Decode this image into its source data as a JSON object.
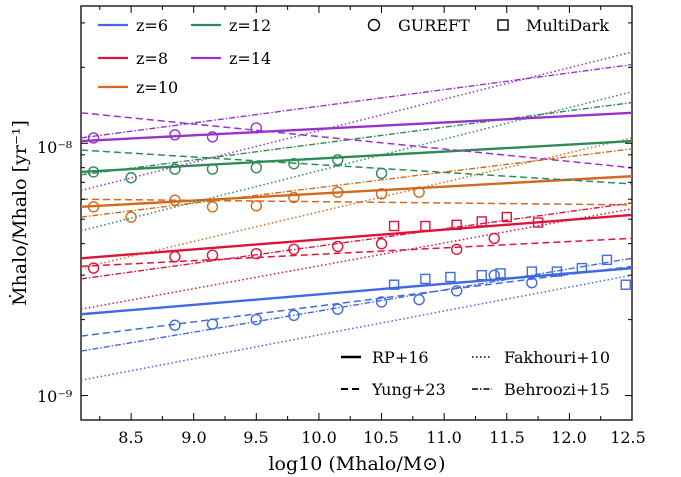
{
  "chart_data": {
    "type": "line",
    "xlabel": "log10 (Mhalo/M⊙)",
    "ylabel": "Ṁhalo/Mhalo [yr⁻¹]",
    "xlim": [
      8.1,
      12.5
    ],
    "ylim": [
      8e-10,
      3.5e-08
    ],
    "yscale": "log",
    "grid": false,
    "x_ticks": [
      "8.5",
      "9.0",
      "9.5",
      "10.0",
      "10.5",
      "11.0",
      "11.5",
      "12.0",
      "12.5"
    ],
    "y_ticks": [
      "10⁻⁹",
      "10⁻⁸"
    ],
    "redshift_legend": {
      "placement": "top-left",
      "entries": [
        {
          "label": "z=6",
          "color": "#4169e1"
        },
        {
          "label": "z=8",
          "color": "#dc143c"
        },
        {
          "label": "z=10",
          "color": "#d2691e"
        },
        {
          "label": "z=12",
          "color": "#2e8b57"
        },
        {
          "label": "z=14",
          "color": "#9932cc"
        }
      ]
    },
    "marker_legend": {
      "placement": "top-right",
      "entries": [
        {
          "label": "GUREFT",
          "marker": "circle"
        },
        {
          "label": "MultiDark",
          "marker": "square"
        }
      ]
    },
    "model_legend": {
      "placement": "bottom-right",
      "entries": [
        {
          "label": "RP+16",
          "linestyle": "solid"
        },
        {
          "label": "Fakhouri+10",
          "linestyle": "dotted"
        },
        {
          "label": "Yung+23",
          "linestyle": "dashed"
        },
        {
          "label": "Behroozi+15",
          "linestyle": "dashdot"
        }
      ]
    },
    "series": [
      {
        "z": 6,
        "model": "RP+16",
        "style": "solid",
        "color": "#4169e1",
        "x": [
          8.1,
          12.5
        ],
        "y": [
          2.1e-09,
          3.2e-09
        ]
      },
      {
        "z": 6,
        "model": "Yung+23",
        "style": "dashed",
        "color": "#4169e1",
        "x": [
          8.1,
          12.5
        ],
        "y": [
          1.72e-09,
          3.25e-09
        ]
      },
      {
        "z": 6,
        "model": "Behroozi+15",
        "style": "dashdot",
        "color": "#4169e1",
        "x": [
          8.1,
          12.5
        ],
        "y": [
          1.5e-09,
          3.5e-09
        ]
      },
      {
        "z": 6,
        "model": "Fakhouri+10",
        "style": "dotted",
        "color": "#4169e1",
        "x": [
          8.1,
          12.5
        ],
        "y": [
          1.15e-09,
          3e-09
        ]
      },
      {
        "z": 8,
        "model": "RP+16",
        "style": "solid",
        "color": "#dc143c",
        "x": [
          8.1,
          12.5
        ],
        "y": [
          3.5e-09,
          5.2e-09
        ]
      },
      {
        "z": 8,
        "model": "Yung+23",
        "style": "dashed",
        "color": "#dc143c",
        "x": [
          8.1,
          12.5
        ],
        "y": [
          3.25e-09,
          4.2e-09
        ]
      },
      {
        "z": 8,
        "model": "Behroozi+15",
        "style": "dashdot",
        "color": "#dc143c",
        "x": [
          8.1,
          12.5
        ],
        "y": [
          2.9e-09,
          5.8e-09
        ]
      },
      {
        "z": 8,
        "model": "Fakhouri+10",
        "style": "dotted",
        "color": "#dc143c",
        "x": [
          8.1,
          12.5
        ],
        "y": [
          2.2e-09,
          5.5e-09
        ]
      },
      {
        "z": 10,
        "model": "RP+16",
        "style": "solid",
        "color": "#d2691e",
        "x": [
          8.1,
          12.5
        ],
        "y": [
          5.6e-09,
          7.4e-09
        ]
      },
      {
        "z": 10,
        "model": "Yung+23",
        "style": "dashed",
        "color": "#d2691e",
        "x": [
          8.1,
          12.5
        ],
        "y": [
          6e-09,
          5.7e-09
        ]
      },
      {
        "z": 10,
        "model": "Behroozi+15",
        "style": "dashdot",
        "color": "#d2691e",
        "x": [
          8.1,
          12.5
        ],
        "y": [
          5.1e-09,
          9.5e-09
        ]
      },
      {
        "z": 10,
        "model": "Fakhouri+10",
        "style": "dotted",
        "color": "#d2691e",
        "x": [
          8.1,
          12.5
        ],
        "y": [
          3.2e-09,
          1.05e-08
        ]
      },
      {
        "z": 12,
        "model": "RP+16",
        "style": "solid",
        "color": "#2e8b57",
        "x": [
          8.1,
          12.5
        ],
        "y": [
          7.7e-09,
          1.02e-08
        ]
      },
      {
        "z": 12,
        "model": "Yung+23",
        "style": "dashed",
        "color": "#2e8b57",
        "x": [
          8.1,
          12.5
        ],
        "y": [
          9.4e-09,
          6.9e-09
        ]
      },
      {
        "z": 12,
        "model": "Behroozi+15",
        "style": "dashdot",
        "color": "#2e8b57",
        "x": [
          8.1,
          12.5
        ],
        "y": [
          7.5e-09,
          1.45e-08
        ]
      },
      {
        "z": 12,
        "model": "Fakhouri+10",
        "style": "dotted",
        "color": "#2e8b57",
        "x": [
          8.1,
          12.5
        ],
        "y": [
          4.5e-09,
          1.6e-08
        ]
      },
      {
        "z": 14,
        "model": "RP+16",
        "style": "solid",
        "color": "#9932cc",
        "x": [
          8.1,
          12.5
        ],
        "y": [
          1.02e-08,
          1.32e-08
        ]
      },
      {
        "z": 14,
        "model": "Yung+23",
        "style": "dashed",
        "color": "#9932cc",
        "x": [
          8.1,
          12.5
        ],
        "y": [
          1.32e-08,
          8e-09
        ]
      },
      {
        "z": 14,
        "model": "Behroozi+15",
        "style": "dashdot",
        "color": "#9932cc",
        "x": [
          8.1,
          12.5
        ],
        "y": [
          1.05e-08,
          2.05e-08
        ]
      },
      {
        "z": 14,
        "model": "Fakhouri+10",
        "style": "dotted",
        "color": "#9932cc",
        "x": [
          8.1,
          12.5
        ],
        "y": [
          6.5e-09,
          2.3e-08
        ]
      }
    ],
    "points": [
      {
        "z": 6,
        "source": "GUREFT",
        "marker": "circle",
        "color": "#4169e1",
        "x": [
          8.85,
          9.15,
          9.5,
          9.8,
          10.15,
          10.5,
          10.8,
          11.1,
          11.4,
          11.7
        ],
        "y": [
          1.9e-09,
          1.92e-09,
          2e-09,
          2.08e-09,
          2.2e-09,
          2.35e-09,
          2.4e-09,
          2.6e-09,
          3e-09,
          2.8e-09
        ]
      },
      {
        "z": 6,
        "source": "MultiDark",
        "marker": "square",
        "color": "#4169e1",
        "x": [
          10.6,
          10.85,
          11.05,
          11.3,
          11.45,
          11.7,
          11.9,
          12.1,
          12.3,
          12.45
        ],
        "y": [
          2.75e-09,
          2.9e-09,
          2.95e-09,
          3e-09,
          3.05e-09,
          3.1e-09,
          3.1e-09,
          3.2e-09,
          3.45e-09,
          2.75e-09
        ]
      },
      {
        "z": 8,
        "source": "GUREFT",
        "marker": "circle",
        "color": "#dc143c",
        "x": [
          8.2,
          8.85,
          9.15,
          9.5,
          9.8,
          10.15,
          10.5,
          11.1,
          11.4
        ],
        "y": [
          3.2e-09,
          3.55e-09,
          3.6e-09,
          3.65e-09,
          3.8e-09,
          3.9e-09,
          4e-09,
          3.8e-09,
          4.2e-09
        ]
      },
      {
        "z": 8,
        "source": "MultiDark",
        "marker": "square",
        "color": "#dc143c",
        "x": [
          10.6,
          10.85,
          11.1,
          11.3,
          11.5,
          11.75
        ],
        "y": [
          4.7e-09,
          4.7e-09,
          4.75e-09,
          4.9e-09,
          5.1e-09,
          4.85e-09
        ]
      },
      {
        "z": 10,
        "source": "GUREFT",
        "marker": "circle",
        "color": "#d2691e",
        "x": [
          8.2,
          8.5,
          8.85,
          9.15,
          9.5,
          9.8,
          10.15,
          10.5,
          10.8
        ],
        "y": [
          5.6e-09,
          5.1e-09,
          5.95e-09,
          5.6e-09,
          5.65e-09,
          6.1e-09,
          6.4e-09,
          6.3e-09,
          6.4e-09
        ]
      },
      {
        "z": 12,
        "source": "GUREFT",
        "marker": "circle",
        "color": "#2e8b57",
        "x": [
          8.2,
          8.5,
          8.85,
          9.15,
          9.5,
          9.8,
          10.15,
          10.5
        ],
        "y": [
          7.7e-09,
          7.3e-09,
          7.9e-09,
          7.9e-09,
          8e-09,
          8.3e-09,
          8.6e-09,
          7.6e-09
        ]
      },
      {
        "z": 14,
        "source": "GUREFT",
        "marker": "circle",
        "color": "#9932cc",
        "x": [
          8.2,
          8.85,
          9.15,
          9.5
        ],
        "y": [
          1.05e-08,
          1.08e-08,
          1.06e-08,
          1.15e-08
        ]
      }
    ]
  }
}
